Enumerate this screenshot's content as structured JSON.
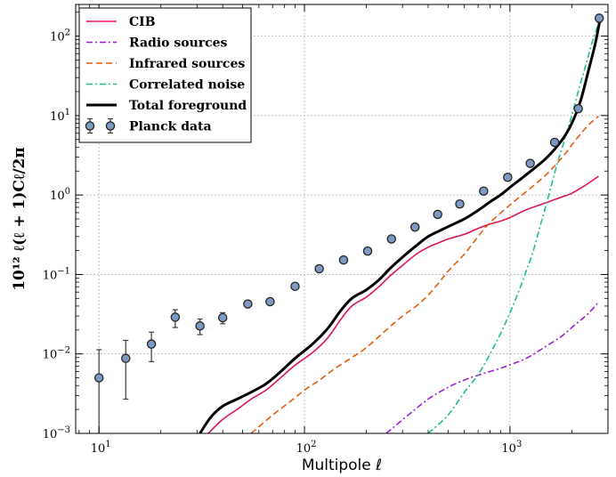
{
  "chart_data": {
    "type": "line",
    "xlabel": "Multipole ℓ",
    "ylabel": "10¹² ℓ(ℓ + 1)Cℓ/2π",
    "xscale": "log",
    "yscale": "log",
    "xlim": [
      7.7,
      3000
    ],
    "ylim": [
      0.001,
      250
    ],
    "grid": true,
    "legend_position": "top-left",
    "x_ticks": [
      {
        "value": 10,
        "label": "10",
        "exp": "1"
      },
      {
        "value": 100,
        "label": "10",
        "exp": "2"
      },
      {
        "value": 1000,
        "label": "10",
        "exp": "3"
      }
    ],
    "y_ticks": [
      {
        "value": 0.001,
        "label": "10",
        "exp": "−3"
      },
      {
        "value": 0.01,
        "label": "10",
        "exp": "−2"
      },
      {
        "value": 0.1,
        "label": "10",
        "exp": "−1"
      },
      {
        "value": 1,
        "label": "10",
        "exp": "0"
      },
      {
        "value": 10,
        "label": "10",
        "exp": "1"
      },
      {
        "value": 100,
        "label": "10",
        "exp": "2"
      }
    ],
    "series": [
      {
        "name": "CIB",
        "color": "#e0144c",
        "style": "solid",
        "points": [
          [
            34,
            0.001
          ],
          [
            40,
            0.0015
          ],
          [
            47,
            0.002
          ],
          [
            55,
            0.0027
          ],
          [
            65,
            0.0035
          ],
          [
            75,
            0.0048
          ],
          [
            90,
            0.0072
          ],
          [
            110,
            0.0105
          ],
          [
            130,
            0.016
          ],
          [
            150,
            0.027
          ],
          [
            170,
            0.04
          ],
          [
            200,
            0.052
          ],
          [
            230,
            0.07
          ],
          [
            260,
            0.095
          ],
          [
            300,
            0.13
          ],
          [
            350,
            0.18
          ],
          [
            400,
            0.22
          ],
          [
            450,
            0.25
          ],
          [
            500,
            0.28
          ],
          [
            600,
            0.32
          ],
          [
            700,
            0.38
          ],
          [
            800,
            0.43
          ],
          [
            900,
            0.47
          ],
          [
            1000,
            0.52
          ],
          [
            1200,
            0.65
          ],
          [
            1500,
            0.8
          ],
          [
            1800,
            0.95
          ],
          [
            2000,
            1.05
          ],
          [
            2300,
            1.3
          ],
          [
            2700,
            1.72
          ]
        ]
      },
      {
        "name": "Radio sources",
        "color": "#9b1fd0",
        "style": "dashdot",
        "points": [
          [
            250,
            0.001
          ],
          [
            320,
            0.0017
          ],
          [
            400,
            0.0027
          ],
          [
            500,
            0.0038
          ],
          [
            600,
            0.0047
          ],
          [
            700,
            0.0054
          ],
          [
            800,
            0.006
          ],
          [
            900,
            0.0066
          ],
          [
            1000,
            0.0073
          ],
          [
            1200,
            0.0088
          ],
          [
            1500,
            0.0125
          ],
          [
            1800,
            0.017
          ],
          [
            2100,
            0.024
          ],
          [
            2400,
            0.032
          ],
          [
            2700,
            0.045
          ]
        ]
      },
      {
        "name": "Infrared sources",
        "color": "#e65c0a",
        "style": "dashed",
        "points": [
          [
            55,
            0.001
          ],
          [
            70,
            0.0017
          ],
          [
            85,
            0.0025
          ],
          [
            100,
            0.0035
          ],
          [
            120,
            0.0048
          ],
          [
            140,
            0.0065
          ],
          [
            170,
            0.009
          ],
          [
            200,
            0.012
          ],
          [
            250,
            0.02
          ],
          [
            300,
            0.03
          ],
          [
            350,
            0.04
          ],
          [
            400,
            0.055
          ],
          [
            450,
            0.078
          ],
          [
            500,
            0.11
          ],
          [
            600,
            0.18
          ],
          [
            700,
            0.3
          ],
          [
            800,
            0.45
          ],
          [
            1000,
            0.75
          ],
          [
            1200,
            1.1
          ],
          [
            1500,
            1.8
          ],
          [
            1800,
            3.0
          ],
          [
            2100,
            5.0
          ],
          [
            2400,
            7.5
          ],
          [
            2700,
            9.8
          ]
        ]
      },
      {
        "name": "Correlated noise",
        "color": "#19bf8c",
        "style": "dashdot",
        "points": [
          [
            400,
            0.001
          ],
          [
            500,
            0.0017
          ],
          [
            600,
            0.0033
          ],
          [
            700,
            0.0055
          ],
          [
            800,
            0.01
          ],
          [
            900,
            0.018
          ],
          [
            1000,
            0.033
          ],
          [
            1100,
            0.06
          ],
          [
            1200,
            0.11
          ],
          [
            1300,
            0.2
          ],
          [
            1400,
            0.4
          ],
          [
            1500,
            0.75
          ],
          [
            1600,
            1.4
          ],
          [
            1700,
            2.5
          ],
          [
            1800,
            4.0
          ],
          [
            1900,
            6.5
          ],
          [
            2000,
            10
          ],
          [
            2100,
            16
          ],
          [
            2200,
            25
          ],
          [
            2350,
            45
          ],
          [
            2500,
            80
          ],
          [
            2650,
            125
          ],
          [
            2750,
            170
          ]
        ]
      },
      {
        "name": "Total foreground",
        "color": "#000000",
        "style": "solid",
        "points": [
          [
            31,
            0.001
          ],
          [
            35,
            0.0016
          ],
          [
            40,
            0.0022
          ],
          [
            47,
            0.0027
          ],
          [
            55,
            0.0033
          ],
          [
            65,
            0.0042
          ],
          [
            75,
            0.0057
          ],
          [
            90,
            0.0088
          ],
          [
            110,
            0.0135
          ],
          [
            130,
            0.021
          ],
          [
            150,
            0.035
          ],
          [
            170,
            0.05
          ],
          [
            200,
            0.064
          ],
          [
            230,
            0.085
          ],
          [
            260,
            0.118
          ],
          [
            300,
            0.165
          ],
          [
            350,
            0.23
          ],
          [
            400,
            0.3
          ],
          [
            450,
            0.35
          ],
          [
            500,
            0.4
          ],
          [
            600,
            0.5
          ],
          [
            700,
            0.64
          ],
          [
            800,
            0.82
          ],
          [
            900,
            1.0
          ],
          [
            1000,
            1.25
          ],
          [
            1200,
            1.8
          ],
          [
            1500,
            2.9
          ],
          [
            1800,
            5.0
          ],
          [
            2000,
            8.0
          ],
          [
            2200,
            15
          ],
          [
            2400,
            35
          ],
          [
            2600,
            80
          ],
          [
            2750,
            165
          ]
        ]
      }
    ],
    "scatter": {
      "name": "Planck data",
      "fill": "#7d9bc2",
      "points": [
        {
          "x": 10,
          "y": 0.005,
          "lo": 0.0005,
          "hi": 0.0113
        },
        {
          "x": 13.5,
          "y": 0.0088,
          "lo": 0.0027,
          "hi": 0.0148
        },
        {
          "x": 18,
          "y": 0.0133,
          "lo": 0.008,
          "hi": 0.0188
        },
        {
          "x": 23.5,
          "y": 0.029,
          "lo": 0.0215,
          "hi": 0.036
        },
        {
          "x": 31,
          "y": 0.0225,
          "lo": 0.0175,
          "hi": 0.0275
        },
        {
          "x": 40,
          "y": 0.0285,
          "lo": 0.024,
          "hi": 0.033
        },
        {
          "x": 53,
          "y": 0.0425,
          "lo": 0.04,
          "hi": 0.045
        },
        {
          "x": 68,
          "y": 0.0455,
          "lo": 0.043,
          "hi": 0.048
        },
        {
          "x": 90,
          "y": 0.071,
          "lo": 0.068,
          "hi": 0.074
        },
        {
          "x": 118,
          "y": 0.118,
          "lo": 0.113,
          "hi": 0.123
        },
        {
          "x": 155,
          "y": 0.152,
          "lo": 0.147,
          "hi": 0.157
        },
        {
          "x": 203,
          "y": 0.197,
          "lo": 0.192,
          "hi": 0.202
        },
        {
          "x": 265,
          "y": 0.28,
          "lo": 0.275,
          "hi": 0.285
        },
        {
          "x": 345,
          "y": 0.395,
          "lo": 0.388,
          "hi": 0.402
        },
        {
          "x": 445,
          "y": 0.57,
          "lo": 0.56,
          "hi": 0.58
        },
        {
          "x": 570,
          "y": 0.77,
          "lo": 0.76,
          "hi": 0.78
        },
        {
          "x": 745,
          "y": 1.12,
          "lo": 1.1,
          "hi": 1.14
        },
        {
          "x": 975,
          "y": 1.67,
          "lo": 1.64,
          "hi": 1.7
        },
        {
          "x": 1255,
          "y": 2.5,
          "lo": 2.45,
          "hi": 2.55
        },
        {
          "x": 1650,
          "y": 4.6,
          "lo": 4.5,
          "hi": 4.7
        },
        {
          "x": 2150,
          "y": 12.2,
          "lo": 11.8,
          "hi": 12.6
        },
        {
          "x": 2720,
          "y": 168,
          "lo": 150,
          "hi": 186
        }
      ]
    }
  }
}
